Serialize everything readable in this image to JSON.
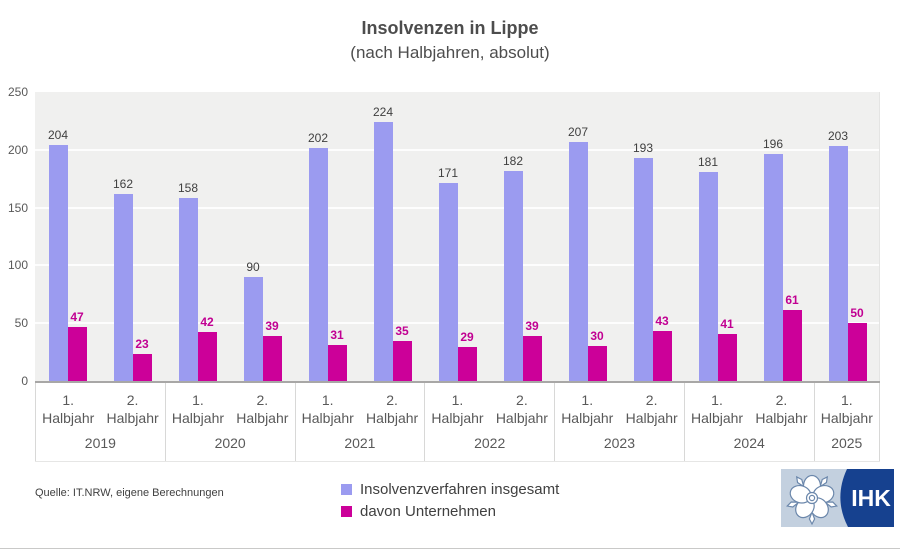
{
  "title": "Insolvenzen in Lippe",
  "subtitle": "(nach Halbjahren, absolut)",
  "source": "Quelle: IT.NRW, eigene Berechnungen",
  "logo": {
    "text": "IHK"
  },
  "colors": {
    "total": "#9b9bf0",
    "companies": "#cc0099",
    "companies_label": "#c10092",
    "total_label": "#3f3f3f",
    "plot_bg": "#f0f0ef"
  },
  "legend": [
    {
      "label": "Insolvenzverfahren insgesamt",
      "color": "#9b9bf0"
    },
    {
      "label": "davon Unternehmen",
      "color": "#cc0099"
    }
  ],
  "chart_data": {
    "type": "bar",
    "title": "Insolvenzen in Lippe",
    "subtitle": "(nach Halbjahren, absolut)",
    "ylim": [
      0,
      250
    ],
    "yticks": [
      0,
      50,
      100,
      150,
      200,
      250
    ],
    "grid": true,
    "legend_position": "bottom",
    "year_groups": [
      {
        "year": "2019",
        "halves": [
          "1. Halbjahr",
          "2. Halbjahr"
        ]
      },
      {
        "year": "2020",
        "halves": [
          "1. Halbjahr",
          "2. Halbjahr"
        ]
      },
      {
        "year": "2021",
        "halves": [
          "1. Halbjahr",
          "2. Halbjahr"
        ]
      },
      {
        "year": "2022",
        "halves": [
          "1. Halbjahr",
          "2. Halbjahr"
        ]
      },
      {
        "year": "2023",
        "halves": [
          "1. Halbjahr",
          "2. Halbjahr"
        ]
      },
      {
        "year": "2024",
        "halves": [
          "1. Halbjahr",
          "2. Halbjahr"
        ]
      },
      {
        "year": "2025",
        "halves": [
          "1. Halbjahr"
        ]
      }
    ],
    "series": [
      {
        "name": "Insolvenzverfahren insgesamt",
        "values": [
          204,
          162,
          158,
          90,
          202,
          224,
          171,
          182,
          207,
          193,
          181,
          196,
          203
        ]
      },
      {
        "name": "davon Unternehmen",
        "values": [
          47,
          23,
          42,
          39,
          31,
          35,
          29,
          39,
          30,
          43,
          41,
          61,
          50
        ]
      }
    ]
  }
}
